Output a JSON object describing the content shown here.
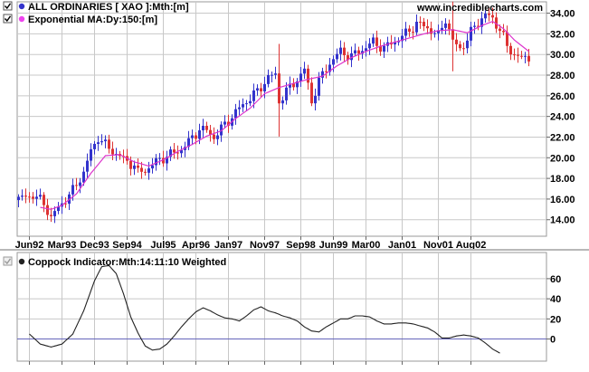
{
  "watermark": "www.incrediblecharts.com",
  "legend": {
    "items": [
      {
        "label": "ALL ORDINARIES [ XAO ]:Mth:[m]",
        "color": "#3333cc"
      },
      {
        "label": "Exponential MA:Dy:150:[m]",
        "color": "#ee44ee"
      }
    ]
  },
  "indicator": {
    "label": "Coppock Indicator:Mth:14:11:10 Weighted",
    "color": "#222222"
  },
  "colors": {
    "up": "#3333cc",
    "down": "#dd3333",
    "ma": "#dd33cc",
    "grid": "#c8c8c8",
    "zero": "#6666bb"
  },
  "chart_data": [
    {
      "type": "candlestick",
      "series_name": "ALL ORDINARIES [ XAO ]:Mth:[m]",
      "overlay_name": "Exponential MA:Dy:150:[m]",
      "x_tick_labels": [
        "Jun92",
        "Mar93",
        "Dec93",
        "Sep94",
        "Jul95",
        "Apr96",
        "Jan97",
        "Nov97",
        "Sep98",
        "Jun99",
        "Mar00",
        "Jan01",
        "Nov01",
        "Aug02"
      ],
      "y_ticks": [
        14,
        16,
        18,
        20,
        22,
        24,
        26,
        28,
        30,
        32,
        34
      ],
      "y_tick_labels": [
        "14.00",
        "16.00",
        "18.00",
        "20.00",
        "22.00",
        "24.00",
        "26.00",
        "28.00",
        "30.00",
        "32.00",
        "34.00"
      ],
      "ylim": [
        12.4,
        35.1
      ],
      "grid": true,
      "close_anchors": [
        [
          0,
          16.0
        ],
        [
          4,
          16.4
        ],
        [
          7,
          15.6
        ],
        [
          9,
          14.2
        ],
        [
          12,
          15.6
        ],
        [
          15,
          16.8
        ],
        [
          18,
          18.6
        ],
        [
          20,
          20.6
        ],
        [
          22,
          22.0
        ],
        [
          24,
          21.2
        ],
        [
          27,
          20.4
        ],
        [
          30,
          19.6
        ],
        [
          32,
          19.3
        ],
        [
          33,
          18.5
        ],
        [
          35,
          18.8
        ],
        [
          38,
          19.6
        ],
        [
          41,
          20.2
        ],
        [
          44,
          20.6
        ],
        [
          47,
          21.5
        ],
        [
          50,
          22.8
        ],
        [
          52,
          22.6
        ],
        [
          54,
          22.0
        ],
        [
          57,
          23.2
        ],
        [
          60,
          24.4
        ],
        [
          63,
          25.5
        ],
        [
          66,
          26.4
        ],
        [
          69,
          27.8
        ],
        [
          71,
          28.0
        ],
        [
          72,
          25.5
        ],
        [
          74,
          26.4
        ],
        [
          77,
          27.6
        ],
        [
          79,
          28.5
        ],
        [
          81,
          25.5
        ],
        [
          83,
          27.4
        ],
        [
          86,
          29.2
        ],
        [
          89,
          30.3
        ],
        [
          92,
          29.8
        ],
        [
          95,
          30.5
        ],
        [
          98,
          31.2
        ],
        [
          101,
          30.6
        ],
        [
          104,
          31.3
        ],
        [
          107,
          32.0
        ],
        [
          110,
          33.0
        ],
        [
          113,
          32.6
        ],
        [
          116,
          31.8
        ],
        [
          118,
          33.5
        ],
        [
          120,
          31.2
        ],
        [
          122,
          30.6
        ],
        [
          124,
          31.4
        ],
        [
          126,
          32.8
        ],
        [
          129,
          33.8
        ],
        [
          131,
          33.5
        ],
        [
          133,
          32.4
        ],
        [
          135,
          30.8
        ],
        [
          137,
          30.0
        ],
        [
          139,
          29.6
        ],
        [
          141,
          29.8
        ]
      ],
      "ma_anchors": [
        [
          6,
          15.2
        ],
        [
          9,
          15.0
        ],
        [
          12,
          15.4
        ],
        [
          16,
          16.5
        ],
        [
          20,
          18.5
        ],
        [
          24,
          20.2
        ],
        [
          28,
          20.3
        ],
        [
          32,
          19.6
        ],
        [
          36,
          19.2
        ],
        [
          40,
          19.8
        ],
        [
          44,
          20.6
        ],
        [
          48,
          21.3
        ],
        [
          52,
          22.1
        ],
        [
          56,
          22.6
        ],
        [
          60,
          23.8
        ],
        [
          64,
          24.8
        ],
        [
          68,
          26.2
        ],
        [
          72,
          26.8
        ],
        [
          76,
          27.2
        ],
        [
          80,
          27.6
        ],
        [
          84,
          27.9
        ],
        [
          88,
          28.9
        ],
        [
          92,
          29.7
        ],
        [
          96,
          30.3
        ],
        [
          100,
          30.8
        ],
        [
          104,
          31.2
        ],
        [
          108,
          31.6
        ],
        [
          112,
          32.0
        ],
        [
          116,
          32.3
        ],
        [
          120,
          32.4
        ],
        [
          124,
          32.1
        ],
        [
          128,
          32.8
        ],
        [
          131,
          33.2
        ],
        [
          134,
          32.5
        ],
        [
          137,
          31.4
        ],
        [
          141,
          30.3
        ]
      ]
    },
    {
      "type": "line",
      "series_name": "Coppock Indicator:Mth:14:11:10 Weighted",
      "y_ticks": [
        0,
        20,
        40,
        60
      ],
      "y_tick_labels": [
        "0",
        "20",
        "40",
        "60"
      ],
      "ylim": [
        -22,
        86
      ],
      "zero_line": 0,
      "anchors": [
        [
          3,
          5
        ],
        [
          6,
          -5
        ],
        [
          9,
          -8
        ],
        [
          12,
          -5
        ],
        [
          15,
          5
        ],
        [
          18,
          28
        ],
        [
          21,
          58
        ],
        [
          23,
          72
        ],
        [
          25,
          73
        ],
        [
          27,
          65
        ],
        [
          29,
          45
        ],
        [
          31,
          22
        ],
        [
          33,
          6
        ],
        [
          35,
          -7
        ],
        [
          37,
          -11
        ],
        [
          39,
          -10
        ],
        [
          41,
          -5
        ],
        [
          43,
          3
        ],
        [
          45,
          12
        ],
        [
          47,
          20
        ],
        [
          49,
          27
        ],
        [
          51,
          31
        ],
        [
          53,
          28
        ],
        [
          55,
          24
        ],
        [
          57,
          21
        ],
        [
          59,
          20
        ],
        [
          61,
          18
        ],
        [
          63,
          23
        ],
        [
          65,
          29
        ],
        [
          67,
          32
        ],
        [
          69,
          28
        ],
        [
          71,
          26
        ],
        [
          73,
          23
        ],
        [
          75,
          21
        ],
        [
          77,
          18
        ],
        [
          79,
          12
        ],
        [
          81,
          8
        ],
        [
          83,
          7
        ],
        [
          85,
          12
        ],
        [
          87,
          16
        ],
        [
          89,
          20
        ],
        [
          91,
          20
        ],
        [
          93,
          23
        ],
        [
          95,
          23
        ],
        [
          97,
          22
        ],
        [
          99,
          18
        ],
        [
          101,
          15
        ],
        [
          103,
          15
        ],
        [
          105,
          16
        ],
        [
          107,
          16
        ],
        [
          109,
          15
        ],
        [
          111,
          13
        ],
        [
          113,
          11
        ],
        [
          115,
          7
        ],
        [
          117,
          1
        ],
        [
          119,
          1
        ],
        [
          121,
          3
        ],
        [
          123,
          4
        ],
        [
          125,
          3
        ],
        [
          127,
          1
        ],
        [
          129,
          -4
        ],
        [
          131,
          -10
        ],
        [
          133,
          -14
        ]
      ]
    }
  ]
}
